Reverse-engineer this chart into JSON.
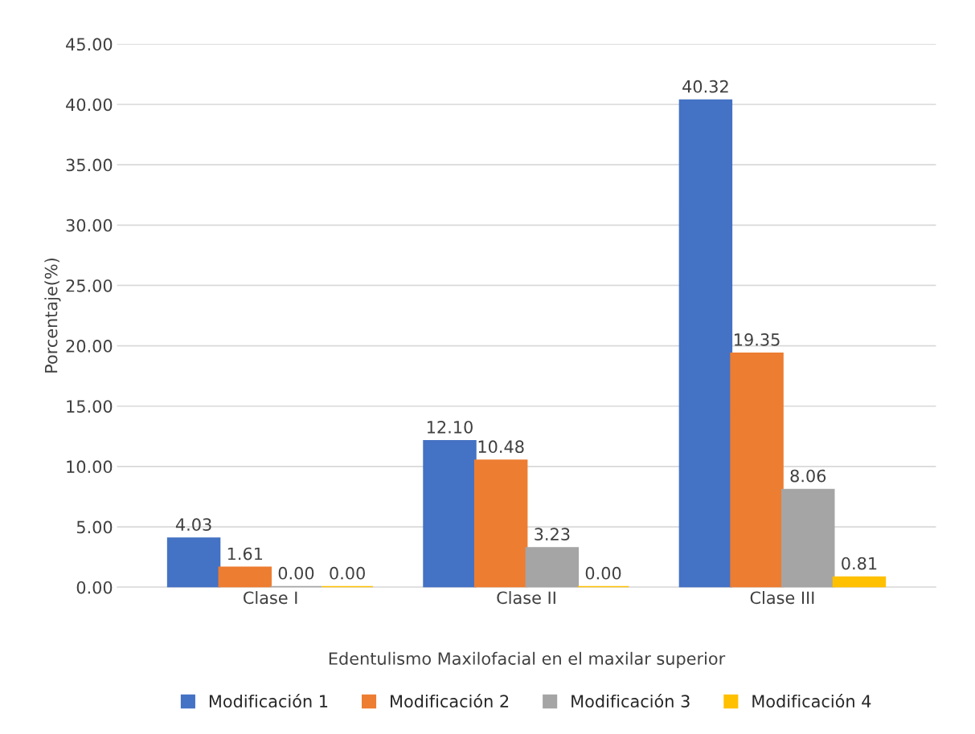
{
  "chart_data": {
    "type": "bar",
    "xlabel": "Edentulismo Maxilofacial en el maxilar superior",
    "ylabel": "Porcentaje(%)",
    "categories": [
      "Clase I",
      "Clase II",
      "Clase III"
    ],
    "series": [
      {
        "name": "Modificación 1",
        "color": "#4472c4",
        "values": [
          4.03,
          12.1,
          40.32
        ],
        "value_labels": [
          "4.03",
          "12.10",
          "40.32"
        ]
      },
      {
        "name": "Modificación 2",
        "color": "#ed7d31",
        "values": [
          1.61,
          10.48,
          19.35
        ],
        "value_labels": [
          "1.61",
          "10.48",
          "19.35"
        ]
      },
      {
        "name": "Modificación 3",
        "color": "#a5a5a5",
        "values": [
          0,
          3.23,
          8.06
        ],
        "value_labels": [
          "0.00",
          "3.23",
          "8.06"
        ]
      },
      {
        "name": "Modificación 4",
        "color": "#ffc000",
        "values": [
          0,
          0,
          0.81
        ],
        "value_labels": [
          "0.00",
          "0.00",
          "0.81"
        ]
      }
    ],
    "ylim": [
      0,
      45
    ],
    "yticks": [
      {
        "value": 0,
        "label": "0.00"
      },
      {
        "value": 5,
        "label": "5.00"
      },
      {
        "value": 10,
        "label": "10.00"
      },
      {
        "value": 15,
        "label": "15.00"
      },
      {
        "value": 20,
        "label": "20.00"
      },
      {
        "value": 25,
        "label": "25.00"
      },
      {
        "value": 30,
        "label": "30.00"
      },
      {
        "value": 35,
        "label": "35.00"
      },
      {
        "value": 40,
        "label": "40.00"
      },
      {
        "value": 45,
        "label": "45.00"
      }
    ],
    "grid": "y",
    "legend": "bottom"
  }
}
